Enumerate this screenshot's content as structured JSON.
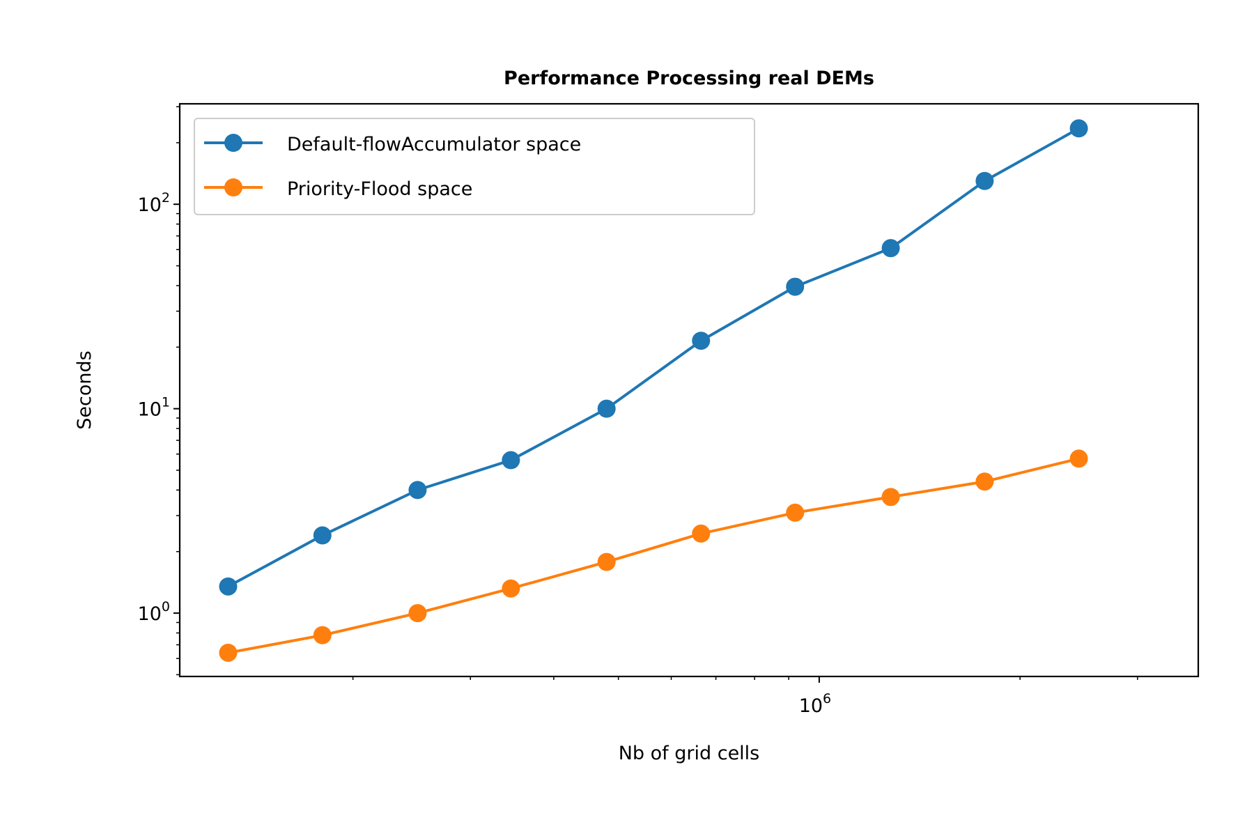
{
  "chart_data": {
    "type": "line",
    "title": "Performance Processing real DEMs",
    "xlabel": "Nb of grid cells",
    "ylabel": "Seconds",
    "xscale": "log",
    "yscale": "log",
    "xlim": [
      110000,
      3700000
    ],
    "ylim": [
      0.49,
      310
    ],
    "x_ticks": [
      {
        "value": 1000000,
        "base": "10",
        "exp": "6"
      }
    ],
    "y_ticks": [
      {
        "value": 1,
        "base": "10",
        "exp": "0"
      },
      {
        "value": 10,
        "base": "10",
        "exp": "1"
      },
      {
        "value": 100,
        "base": "10",
        "exp": "2"
      }
    ],
    "x": [
      130000,
      180000,
      250000,
      345000,
      480000,
      665000,
      920000,
      1280000,
      1770000,
      2450000
    ],
    "series": [
      {
        "name": "Default-flowAccumulator space",
        "color": "#1f77b4",
        "values": [
          1.35,
          2.4,
          4.0,
          5.6,
          10.0,
          21.5,
          39.5,
          61.0,
          130.0,
          235.0
        ]
      },
      {
        "name": "Priority-Flood space",
        "color": "#ff7f0e",
        "values": [
          0.64,
          0.78,
          1.0,
          1.32,
          1.78,
          2.45,
          3.1,
          3.7,
          4.4,
          5.7
        ]
      }
    ],
    "legend_position": "top-left",
    "grid": false
  }
}
